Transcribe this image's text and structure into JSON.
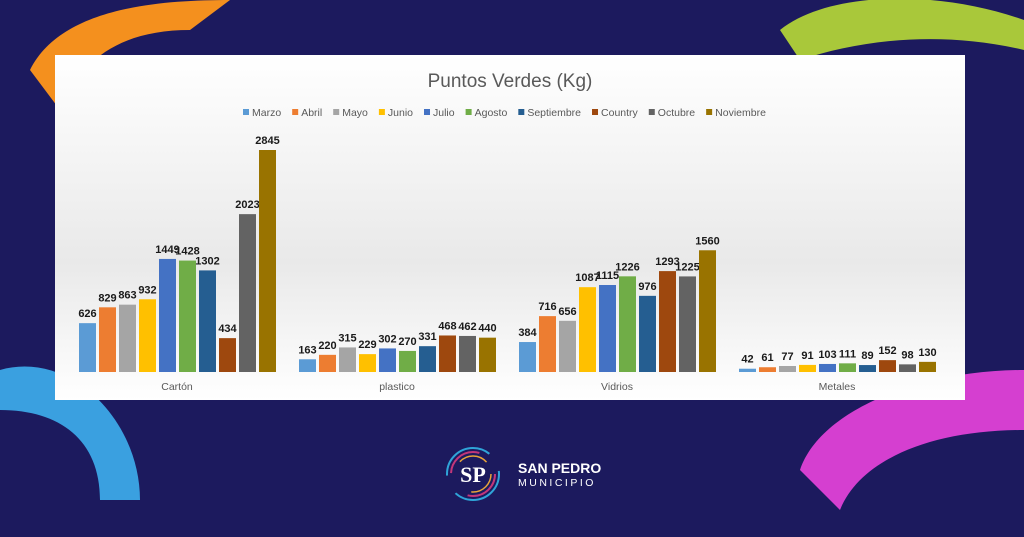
{
  "chart_data": {
    "type": "bar",
    "title": "Puntos Verdes (Kg)",
    "xlabel": "",
    "ylabel": "",
    "ylim": [
      0,
      2900
    ],
    "grid": false,
    "legend_position": "top",
    "categories": [
      "Cartón",
      "plastico",
      "Vidrios",
      "Metales"
    ],
    "series": [
      {
        "name": "Marzo",
        "color": "#5b9bd5",
        "values": [
          626,
          163,
          384,
          42
        ]
      },
      {
        "name": "Abril",
        "color": "#ed7d31",
        "values": [
          829,
          220,
          716,
          61
        ]
      },
      {
        "name": "Mayo",
        "color": "#a5a5a5",
        "values": [
          863,
          315,
          656,
          77
        ]
      },
      {
        "name": "Junio",
        "color": "#ffc000",
        "values": [
          932,
          229,
          1087,
          91
        ]
      },
      {
        "name": "Julio",
        "color": "#4472c4",
        "values": [
          1449,
          302,
          1115,
          103
        ]
      },
      {
        "name": "Agosto",
        "color": "#70ad47",
        "values": [
          1428,
          270,
          1226,
          111
        ]
      },
      {
        "name": "Septiembre",
        "color": "#255e91",
        "values": [
          1302,
          331,
          976,
          89
        ]
      },
      {
        "name": "Country",
        "color": "#9e480e",
        "values": [
          434,
          468,
          1293,
          152
        ]
      },
      {
        "name": "Octubre",
        "color": "#636363",
        "values": [
          2023,
          462,
          1225,
          98
        ]
      },
      {
        "name": "Noviembre",
        "color": "#997300",
        "values": [
          2845,
          440,
          1560,
          130
        ]
      }
    ]
  },
  "logo": {
    "initials": "SP",
    "line1": "SAN PEDRO",
    "line2": "MUNICIPIO"
  }
}
